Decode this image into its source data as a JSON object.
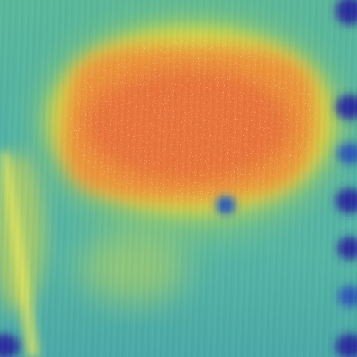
{
  "image": {
    "kind": "heatmap-overlay-on-surface-texture",
    "palette": [
      "#2b2f9e",
      "#2d7fc4",
      "#4fb2a8",
      "#8fcf6a",
      "#e8e03a",
      "#f0a43a",
      "#e86a3a"
    ]
  }
}
